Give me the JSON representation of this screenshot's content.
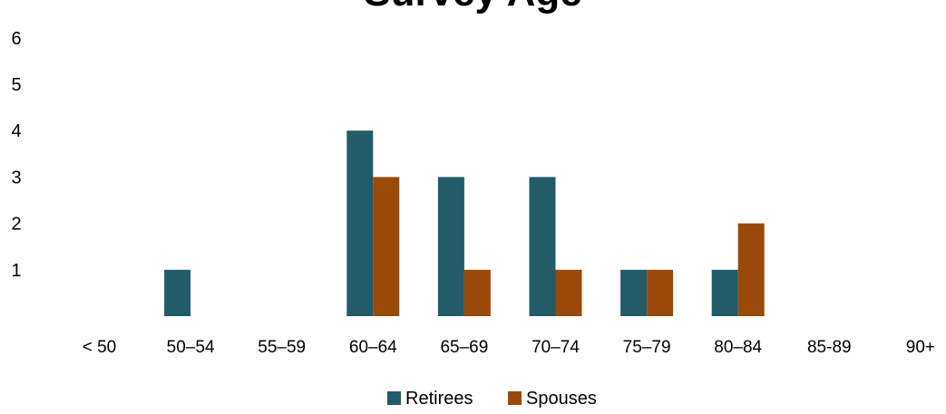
{
  "chart_data": {
    "type": "bar",
    "title": "Survey Age",
    "categories": [
      "< 50",
      "50–54",
      "55–59",
      "60–64",
      "65–69",
      "70–74",
      "75–79",
      "80–84",
      "85-89",
      "90+"
    ],
    "series": [
      {
        "name": "Retirees",
        "color": "#225b6a",
        "values": [
          0,
          1,
          0,
          4,
          3,
          3,
          1,
          1,
          0,
          0
        ]
      },
      {
        "name": "Spouses",
        "color": "#9a4a08",
        "values": [
          0,
          0,
          0,
          3,
          1,
          1,
          1,
          2,
          0,
          0
        ]
      }
    ],
    "yticks": [
      1,
      2,
      3,
      4,
      5,
      6
    ],
    "ylim": [
      0,
      6
    ],
    "xlabel": "",
    "ylabel": "",
    "grid": false,
    "legend": "bottom-center"
  }
}
